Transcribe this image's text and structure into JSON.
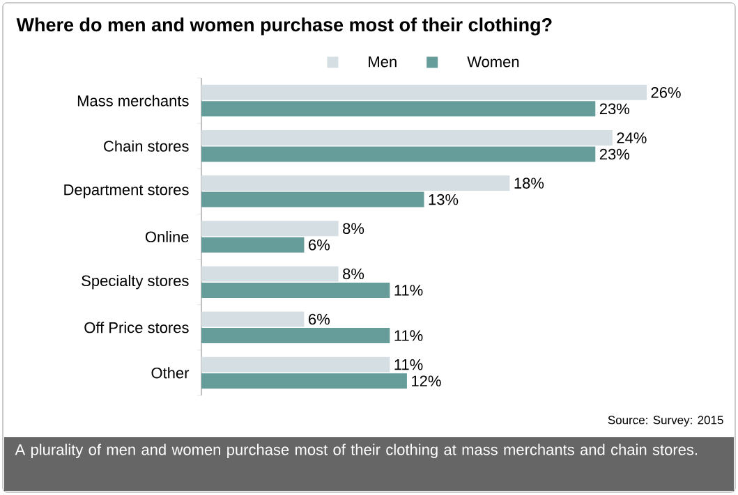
{
  "chart_data": {
    "type": "bar",
    "orientation": "horizontal",
    "title": "Where do men and women purchase most of their clothing?",
    "categories": [
      "Mass merchants",
      "Chain stores",
      "Department stores",
      "Online",
      "Specialty stores",
      "Off Price stores",
      "Other"
    ],
    "series": [
      {
        "name": "Men",
        "color": "#d5dfe3",
        "values": [
          26,
          24,
          18,
          8,
          8,
          6,
          11
        ],
        "value_labels": [
          "26%",
          "24%",
          "18%",
          "8%",
          "8%",
          "6%",
          "11%"
        ]
      },
      {
        "name": "Women",
        "color": "#669c9a",
        "values": [
          23,
          23,
          13,
          6,
          11,
          11,
          12
        ],
        "value_labels": [
          "23%",
          "23%",
          "13%",
          "6%",
          "11%",
          "11%",
          "12%"
        ]
      }
    ],
    "legend": "top",
    "tick_labels": "y",
    "annotations": [
      "Source: Survey: 2015",
      "A plurality of men and women purchase most of their clothing at mass merchants and chain stores."
    ]
  }
}
